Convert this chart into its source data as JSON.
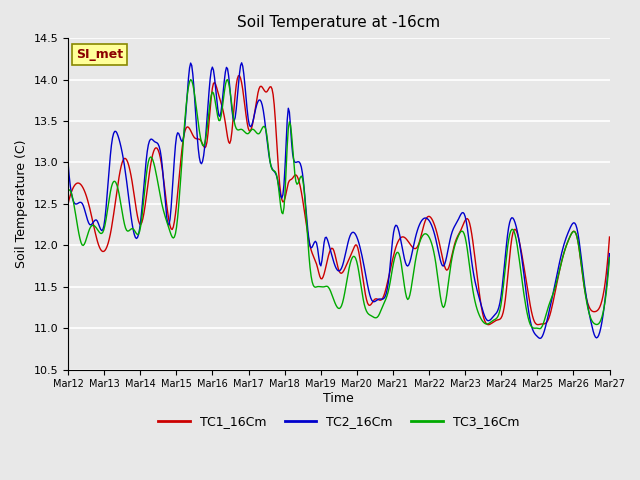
{
  "title": "Soil Temperature at -16cm",
  "xlabel": "Time",
  "ylabel": "Soil Temperature (C)",
  "ylim": [
    10.5,
    14.5
  ],
  "annotation_text": "SI_met",
  "annotation_color": "#8B0000",
  "annotation_bg": "#FFFF99",
  "bg_color": "#E8E8E8",
  "grid_color": "#FFFFFF",
  "line_colors": {
    "TC1": "#CC0000",
    "TC2": "#0000CC",
    "TC3": "#00AA00"
  },
  "legend_labels": [
    "TC1_16Cm",
    "TC2_16Cm",
    "TC3_16Cm"
  ],
  "x_tick_labels": [
    "Mar 12",
    "Mar 13",
    "Mar 14",
    "Mar 15",
    "Mar 16",
    "Mar 17",
    "Mar 18",
    "Mar 19",
    "Mar 20",
    "Mar 21",
    "Mar 22",
    "Mar 23",
    "Mar 24",
    "Mar 25",
    "Mar 26",
    "Mar 27"
  ],
  "tc1_keypoints": [
    [
      0,
      12.5
    ],
    [
      0.3,
      12.75
    ],
    [
      0.6,
      12.45
    ],
    [
      0.85,
      12.0
    ],
    [
      1.2,
      12.2
    ],
    [
      1.5,
      13.0
    ],
    [
      1.8,
      12.7
    ],
    [
      2.0,
      12.25
    ],
    [
      2.3,
      13.0
    ],
    [
      2.6,
      12.95
    ],
    [
      2.9,
      12.2
    ],
    [
      3.2,
      13.3
    ],
    [
      3.5,
      13.3
    ],
    [
      3.7,
      13.25
    ],
    [
      3.85,
      13.25
    ],
    [
      4.0,
      13.9
    ],
    [
      4.15,
      13.85
    ],
    [
      4.35,
      13.5
    ],
    [
      4.5,
      13.25
    ],
    [
      4.65,
      13.9
    ],
    [
      4.85,
      13.85
    ],
    [
      5.0,
      13.4
    ],
    [
      5.15,
      13.55
    ],
    [
      5.3,
      13.9
    ],
    [
      5.5,
      13.85
    ],
    [
      5.7,
      13.75
    ],
    [
      5.85,
      12.8
    ],
    [
      6.0,
      12.55
    ],
    [
      6.1,
      12.75
    ],
    [
      6.2,
      12.8
    ],
    [
      6.3,
      12.85
    ],
    [
      6.5,
      12.55
    ],
    [
      6.7,
      12.0
    ],
    [
      6.9,
      11.75
    ],
    [
      7.0,
      11.6
    ],
    [
      7.2,
      11.85
    ],
    [
      7.35,
      11.95
    ],
    [
      7.5,
      11.7
    ],
    [
      7.7,
      11.75
    ],
    [
      7.9,
      11.95
    ],
    [
      8.0,
      12.0
    ],
    [
      8.1,
      11.8
    ],
    [
      8.3,
      11.3
    ],
    [
      8.5,
      11.35
    ],
    [
      8.7,
      11.35
    ],
    [
      8.9,
      11.65
    ],
    [
      9.1,
      12.0
    ],
    [
      9.3,
      12.1
    ],
    [
      9.5,
      12.0
    ],
    [
      9.7,
      12.0
    ],
    [
      9.9,
      12.3
    ],
    [
      10.1,
      12.3
    ],
    [
      10.3,
      12.0
    ],
    [
      10.5,
      11.7
    ],
    [
      10.7,
      12.0
    ],
    [
      10.9,
      12.2
    ],
    [
      11.1,
      12.3
    ],
    [
      11.3,
      11.75
    ],
    [
      11.5,
      11.15
    ],
    [
      11.7,
      11.05
    ],
    [
      11.9,
      11.1
    ],
    [
      12.1,
      11.3
    ],
    [
      12.3,
      12.1
    ],
    [
      12.5,
      12.05
    ],
    [
      12.7,
      11.55
    ],
    [
      12.9,
      11.1
    ],
    [
      13.1,
      11.05
    ],
    [
      13.3,
      11.1
    ],
    [
      13.5,
      11.45
    ],
    [
      13.7,
      11.85
    ],
    [
      13.9,
      12.1
    ],
    [
      14.1,
      12.1
    ],
    [
      14.3,
      11.5
    ],
    [
      14.6,
      11.2
    ],
    [
      14.8,
      11.35
    ],
    [
      15.0,
      12.1
    ]
  ],
  "tc2_keypoints": [
    [
      0,
      13.0
    ],
    [
      0.2,
      12.5
    ],
    [
      0.4,
      12.5
    ],
    [
      0.6,
      12.25
    ],
    [
      0.8,
      12.3
    ],
    [
      1.0,
      12.25
    ],
    [
      1.2,
      13.2
    ],
    [
      1.4,
      13.3
    ],
    [
      1.6,
      12.85
    ],
    [
      1.8,
      12.2
    ],
    [
      2.0,
      12.25
    ],
    [
      2.2,
      13.15
    ],
    [
      2.4,
      13.25
    ],
    [
      2.6,
      13.0
    ],
    [
      2.8,
      12.25
    ],
    [
      3.0,
      13.3
    ],
    [
      3.2,
      13.3
    ],
    [
      3.4,
      14.2
    ],
    [
      3.6,
      13.2
    ],
    [
      3.8,
      13.25
    ],
    [
      4.0,
      14.15
    ],
    [
      4.2,
      13.55
    ],
    [
      4.4,
      14.15
    ],
    [
      4.6,
      13.5
    ],
    [
      4.8,
      14.2
    ],
    [
      5.0,
      13.5
    ],
    [
      5.2,
      13.65
    ],
    [
      5.4,
      13.65
    ],
    [
      5.6,
      13.0
    ],
    [
      5.8,
      12.8
    ],
    [
      6.0,
      12.85
    ],
    [
      6.1,
      13.65
    ],
    [
      6.2,
      13.2
    ],
    [
      6.3,
      13.0
    ],
    [
      6.5,
      12.85
    ],
    [
      6.7,
      12.0
    ],
    [
      6.9,
      12.0
    ],
    [
      7.0,
      11.75
    ],
    [
      7.1,
      12.05
    ],
    [
      7.2,
      12.05
    ],
    [
      7.4,
      11.75
    ],
    [
      7.6,
      11.75
    ],
    [
      7.8,
      12.1
    ],
    [
      8.0,
      12.1
    ],
    [
      8.2,
      11.75
    ],
    [
      8.4,
      11.35
    ],
    [
      8.6,
      11.35
    ],
    [
      8.7,
      11.35
    ],
    [
      8.9,
      11.65
    ],
    [
      9.0,
      12.1
    ],
    [
      9.2,
      12.1
    ],
    [
      9.4,
      11.75
    ],
    [
      9.6,
      12.05
    ],
    [
      9.8,
      12.3
    ],
    [
      10.0,
      12.3
    ],
    [
      10.2,
      12.05
    ],
    [
      10.4,
      11.75
    ],
    [
      10.6,
      12.1
    ],
    [
      10.8,
      12.3
    ],
    [
      11.0,
      12.35
    ],
    [
      11.2,
      11.75
    ],
    [
      11.4,
      11.35
    ],
    [
      11.6,
      11.1
    ],
    [
      11.8,
      11.15
    ],
    [
      12.0,
      11.4
    ],
    [
      12.2,
      12.2
    ],
    [
      12.4,
      12.25
    ],
    [
      12.6,
      11.75
    ],
    [
      12.8,
      11.1
    ],
    [
      13.0,
      10.9
    ],
    [
      13.1,
      10.88
    ],
    [
      13.3,
      11.15
    ],
    [
      13.5,
      11.55
    ],
    [
      13.7,
      11.95
    ],
    [
      13.9,
      12.2
    ],
    [
      14.1,
      12.2
    ],
    [
      14.3,
      11.55
    ],
    [
      14.5,
      11.05
    ],
    [
      14.6,
      10.9
    ],
    [
      14.8,
      11.1
    ],
    [
      15.0,
      11.9
    ]
  ],
  "tc3_keypoints": [
    [
      0,
      12.65
    ],
    [
      0.2,
      12.4
    ],
    [
      0.4,
      12.0
    ],
    [
      0.6,
      12.2
    ],
    [
      0.8,
      12.2
    ],
    [
      1.0,
      12.2
    ],
    [
      1.2,
      12.7
    ],
    [
      1.4,
      12.65
    ],
    [
      1.6,
      12.2
    ],
    [
      1.8,
      12.2
    ],
    [
      2.0,
      12.2
    ],
    [
      2.2,
      12.95
    ],
    [
      2.4,
      12.95
    ],
    [
      2.6,
      12.5
    ],
    [
      2.8,
      12.2
    ],
    [
      3.0,
      12.2
    ],
    [
      3.2,
      13.3
    ],
    [
      3.4,
      14.0
    ],
    [
      3.6,
      13.5
    ],
    [
      3.8,
      13.25
    ],
    [
      4.0,
      13.85
    ],
    [
      4.2,
      13.5
    ],
    [
      4.4,
      14.0
    ],
    [
      4.6,
      13.5
    ],
    [
      4.8,
      13.4
    ],
    [
      5.0,
      13.35
    ],
    [
      5.1,
      13.4
    ],
    [
      5.3,
      13.35
    ],
    [
      5.5,
      13.35
    ],
    [
      5.6,
      13.0
    ],
    [
      5.8,
      12.8
    ],
    [
      6.0,
      12.55
    ],
    [
      6.1,
      13.4
    ],
    [
      6.2,
      13.3
    ],
    [
      6.3,
      12.8
    ],
    [
      6.5,
      12.8
    ],
    [
      6.7,
      11.75
    ],
    [
      6.9,
      11.5
    ],
    [
      7.0,
      11.5
    ],
    [
      7.1,
      11.5
    ],
    [
      7.2,
      11.5
    ],
    [
      7.4,
      11.3
    ],
    [
      7.6,
      11.3
    ],
    [
      7.8,
      11.75
    ],
    [
      8.0,
      11.8
    ],
    [
      8.2,
      11.3
    ],
    [
      8.4,
      11.15
    ],
    [
      8.6,
      11.15
    ],
    [
      8.7,
      11.25
    ],
    [
      8.9,
      11.5
    ],
    [
      9.0,
      11.75
    ],
    [
      9.2,
      11.85
    ],
    [
      9.4,
      11.35
    ],
    [
      9.6,
      11.75
    ],
    [
      9.8,
      12.1
    ],
    [
      10.0,
      12.1
    ],
    [
      10.2,
      11.75
    ],
    [
      10.4,
      11.25
    ],
    [
      10.6,
      11.75
    ],
    [
      10.8,
      12.1
    ],
    [
      11.0,
      12.1
    ],
    [
      11.2,
      11.5
    ],
    [
      11.4,
      11.15
    ],
    [
      11.6,
      11.05
    ],
    [
      11.8,
      11.1
    ],
    [
      12.0,
      11.3
    ],
    [
      12.2,
      12.05
    ],
    [
      12.4,
      12.1
    ],
    [
      12.6,
      11.5
    ],
    [
      12.8,
      11.05
    ],
    [
      13.0,
      11.0
    ],
    [
      13.1,
      11.0
    ],
    [
      13.3,
      11.25
    ],
    [
      13.5,
      11.5
    ],
    [
      13.7,
      11.85
    ],
    [
      13.9,
      12.1
    ],
    [
      14.1,
      12.1
    ],
    [
      14.3,
      11.5
    ],
    [
      14.5,
      11.1
    ],
    [
      14.6,
      11.05
    ],
    [
      14.8,
      11.15
    ],
    [
      15.0,
      11.85
    ]
  ]
}
